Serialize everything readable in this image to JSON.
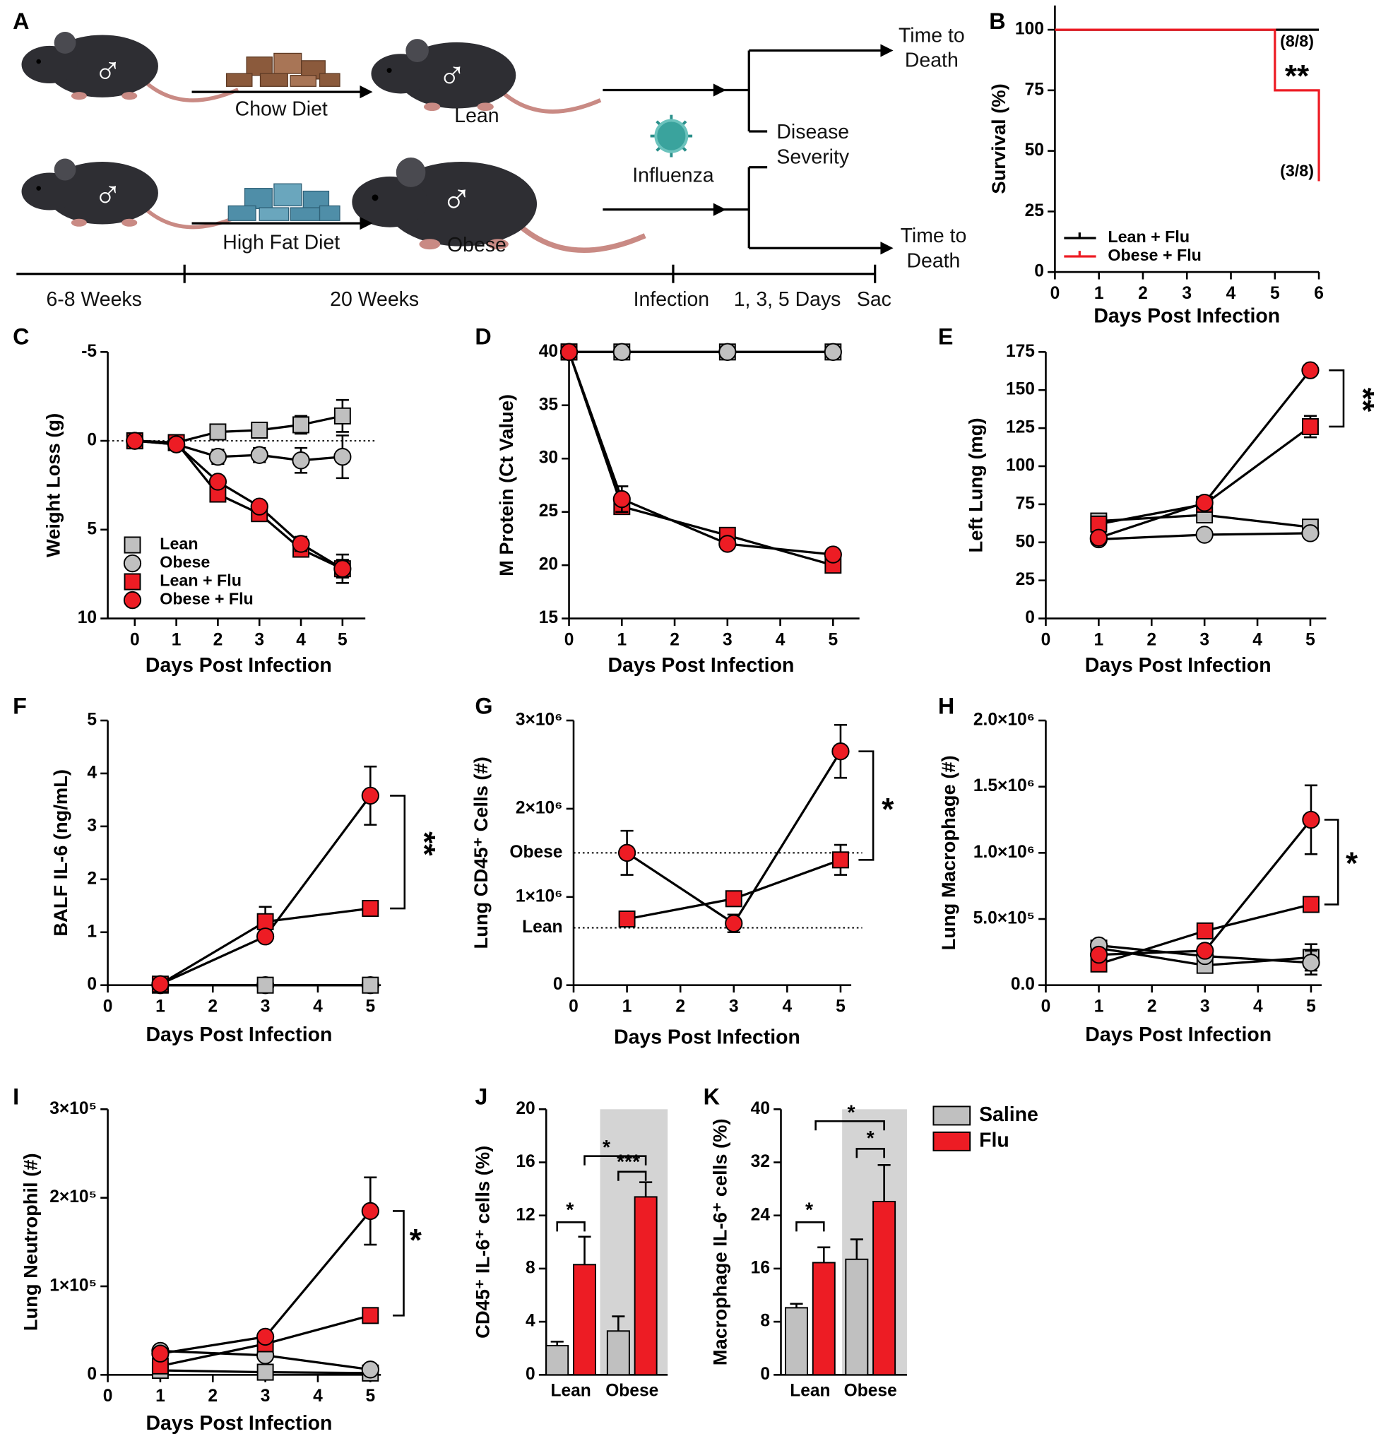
{
  "diagram": {
    "panel": "A",
    "male_symbol": "♂",
    "diets": [
      "Chow Diet",
      "High Fat Diet"
    ],
    "groups": [
      "Lean",
      "Obese"
    ],
    "virus": "Influenza",
    "outcomes": [
      [
        "Time to",
        "Death"
      ],
      [
        "Disease",
        "Severity"
      ],
      [
        "Time to",
        "Death"
      ]
    ],
    "timeline": [
      "6-8 Weeks",
      "20 Weeks",
      "Infection",
      "1, 3, 5 Days",
      "Sac"
    ]
  },
  "chart_data": [
    {
      "panel": "B",
      "type": "line",
      "y_label": "Survival (%)",
      "x_label": "Days Post Infection",
      "xlim": [
        0,
        6
      ],
      "xticks": [
        0,
        1,
        2,
        3,
        4,
        5,
        6
      ],
      "ylim": [
        0,
        110
      ],
      "yticks": [
        0,
        25,
        50,
        75,
        100
      ],
      "legend": "lower left",
      "series": [
        {
          "name": "Lean + Flu",
          "color": "#000000",
          "x": [
            0,
            6
          ],
          "values": [
            100,
            100
          ]
        },
        {
          "name": "Obese + Flu",
          "color": "#ed1c24",
          "x": [
            0,
            5,
            5,
            6,
            6
          ],
          "values": [
            100,
            100,
            75,
            75,
            37.5
          ]
        }
      ],
      "annotations": [
        {
          "text": "(8/8)",
          "color": "#000000"
        },
        {
          "text": "**",
          "color": "#000000"
        },
        {
          "text": "(3/8)",
          "color": "#ed1c24"
        }
      ]
    },
    {
      "panel": "C",
      "type": "line",
      "y_label": "Weight Loss (g)",
      "x_label": "Days Post Infection",
      "xlim": [
        -0.65,
        5.55
      ],
      "xticks": [
        0,
        1,
        2,
        3,
        4,
        5
      ],
      "ylim": [
        10,
        -5
      ],
      "yticks": [
        -5,
        0,
        5,
        10
      ],
      "legend": "lower left",
      "line_color": "#000000",
      "reference_lines": [
        0
      ],
      "x": [
        0,
        1,
        2,
        3,
        4,
        5
      ],
      "series": [
        {
          "name": "Lean",
          "color": "#c0c0c0",
          "marker": "square",
          "values": [
            0,
            0.1,
            -0.5,
            -0.6,
            -0.9,
            -1.4
          ],
          "errors": [
            0,
            0.1,
            0.2,
            0.2,
            0.5,
            0.9
          ]
        },
        {
          "name": "Obese",
          "color": "#c0c0c0",
          "marker": "circle",
          "values": [
            0,
            0.2,
            0.9,
            0.8,
            1.1,
            0.9
          ],
          "errors": [
            0.1,
            0.2,
            0.4,
            0.4,
            0.7,
            1.2
          ]
        },
        {
          "name": "Lean + Flu",
          "color": "#ed1c24",
          "marker": "square",
          "values": [
            0,
            0.1,
            3.0,
            4.1,
            6.1,
            7.2
          ],
          "errors": [
            0.1,
            0.1,
            0.2,
            0.3,
            0.4,
            0.5
          ]
        },
        {
          "name": "Obese + Flu",
          "color": "#ed1c24",
          "marker": "circle",
          "values": [
            0,
            0.2,
            2.3,
            3.7,
            5.8,
            7.2
          ],
          "errors": [
            0.1,
            0.1,
            0.2,
            0.3,
            0.4,
            0.8
          ]
        }
      ]
    },
    {
      "panel": "D",
      "type": "line",
      "y_label": "M Protein (Ct Value)",
      "x_label": "Days Post Infection",
      "xlim": [
        0,
        5.5
      ],
      "xticks": [
        0,
        1,
        2,
        3,
        4,
        5
      ],
      "ylim": [
        15,
        40
      ],
      "yticks": [
        15,
        20,
        25,
        30,
        35,
        40
      ],
      "line_color": "#000000",
      "x": [
        0,
        1,
        3,
        5
      ],
      "series": [
        {
          "color": "#c0c0c0",
          "marker": "square",
          "values": [
            40,
            40,
            40,
            40
          ]
        },
        {
          "color": "#c0c0c0",
          "marker": "circle",
          "values": [
            40,
            40,
            40,
            40
          ]
        },
        {
          "color": "#ed1c24",
          "marker": "square",
          "values": [
            40,
            25.5,
            22.8,
            20.0
          ],
          "errors": [
            0,
            0.6,
            0.5,
            0.4
          ]
        },
        {
          "color": "#ed1c24",
          "marker": "circle",
          "values": [
            40,
            26.2,
            22.0,
            21.0
          ],
          "errors": [
            0,
            1.2,
            0.5,
            0.3
          ]
        }
      ]
    },
    {
      "panel": "E",
      "type": "line",
      "y_label": "Left Lung (mg)",
      "x_label": "Days Post Infection",
      "xlim": [
        0,
        5.3
      ],
      "xticks": [
        0,
        1,
        2,
        3,
        4,
        5
      ],
      "ylim": [
        0,
        175
      ],
      "yticks": [
        0,
        25,
        50,
        75,
        100,
        125,
        150,
        175
      ],
      "line_color": "#000000",
      "x": [
        1,
        3,
        5
      ],
      "series": [
        {
          "color": "#c0c0c0",
          "marker": "square",
          "values": [
            64,
            68,
            60
          ],
          "errors": [
            3,
            3,
            2
          ]
        },
        {
          "color": "#c0c0c0",
          "marker": "circle",
          "values": [
            52,
            55,
            56
          ],
          "errors": [
            1,
            1,
            1
          ]
        },
        {
          "color": "#ed1c24",
          "marker": "square",
          "values": [
            62,
            75,
            126
          ],
          "errors": [
            2,
            2,
            7
          ]
        },
        {
          "color": "#ed1c24",
          "marker": "circle",
          "values": [
            53,
            76,
            163
          ],
          "errors": [
            1,
            2,
            1
          ]
        }
      ],
      "annotations": [
        {
          "text": "**"
        }
      ]
    },
    {
      "panel": "F",
      "type": "line",
      "y_label": "BALF IL-6 (ng/mL)",
      "x_label": "Days Post Infection",
      "xlim": [
        0,
        5.2
      ],
      "xticks": [
        0,
        1,
        2,
        3,
        4,
        5
      ],
      "ylim": [
        0,
        5
      ],
      "yticks": [
        0,
        1,
        2,
        3,
        4,
        5
      ],
      "line_color": "#000000",
      "x": [
        1,
        3,
        5
      ],
      "series": [
        {
          "color": "#c0c0c0",
          "marker": "circle",
          "values": [
            0,
            0,
            0
          ]
        },
        {
          "color": "#c0c0c0",
          "marker": "square",
          "values": [
            0,
            0,
            0
          ]
        },
        {
          "color": "#ed1c24",
          "marker": "square",
          "values": [
            0.02,
            1.2,
            1.45
          ],
          "errors": [
            0,
            0.28,
            0.05
          ]
        },
        {
          "color": "#ed1c24",
          "marker": "circle",
          "values": [
            0.02,
            0.92,
            3.58
          ],
          "errors": [
            0,
            0.1,
            0.55
          ]
        }
      ],
      "annotations": [
        {
          "text": "**"
        }
      ]
    },
    {
      "panel": "G",
      "type": "line",
      "y_label": "Lung CD45⁺ Cells (#)",
      "x_label": "Days Post Infection",
      "xlim": [
        0,
        5.2
      ],
      "xticks": [
        0,
        1,
        2,
        3,
        4,
        5
      ],
      "ylim": [
        0,
        3000000
      ],
      "yticks": [
        0,
        {
          "value": 1000000,
          "label": "1×10⁶"
        },
        {
          "value": 2000000,
          "label": "2×10⁶"
        },
        {
          "value": 3000000,
          "label": "3×10⁶"
        }
      ],
      "line_color": "#000000",
      "reference_lines": [
        {
          "value": 1500000,
          "label": "Obese"
        },
        {
          "value": 650000,
          "label": "Lean"
        }
      ],
      "x": [
        1,
        3,
        5
      ],
      "series": [
        {
          "color": "#ed1c24",
          "marker": "square",
          "values": [
            750000,
            980000,
            1420000
          ],
          "errors": [
            60000,
            80000,
            170000
          ]
        },
        {
          "color": "#ed1c24",
          "marker": "circle",
          "values": [
            1500000,
            700000,
            2650000
          ],
          "errors": [
            250000,
            100000,
            300000
          ]
        }
      ],
      "annotations": [
        {
          "text": "*"
        }
      ]
    },
    {
      "panel": "H",
      "type": "line",
      "y_label": "Lung Macrophage (#)",
      "x_label": "Days Post Infection",
      "xlim": [
        0,
        5.2
      ],
      "xticks": [
        0,
        1,
        2,
        3,
        4,
        5
      ],
      "ylim": [
        0,
        2000000
      ],
      "yticks": [
        {
          "value": 0,
          "label": "0.0"
        },
        {
          "value": 500000,
          "label": "5.0×10⁵"
        },
        {
          "value": 1000000,
          "label": "1.0×10⁶"
        },
        {
          "value": 1500000,
          "label": "1.5×10⁶"
        },
        {
          "value": 2000000,
          "label": "2.0×10⁶"
        }
      ],
      "line_color": "#000000",
      "x": [
        1,
        3,
        5
      ],
      "series": [
        {
          "color": "#c0c0c0",
          "marker": "square",
          "values": [
            280000,
            150000,
            210000
          ],
          "errors": [
            20000,
            20000,
            100000
          ]
        },
        {
          "color": "#c0c0c0",
          "marker": "circle",
          "values": [
            300000,
            220000,
            170000
          ],
          "errors": [
            20000,
            20000,
            90000
          ]
        },
        {
          "color": "#ed1c24",
          "marker": "square",
          "values": [
            160000,
            410000,
            610000
          ],
          "errors": [
            20000,
            40000,
            40000
          ]
        },
        {
          "color": "#ed1c24",
          "marker": "circle",
          "values": [
            230000,
            260000,
            1250000
          ],
          "errors": [
            20000,
            30000,
            260000
          ]
        }
      ],
      "annotations": [
        {
          "text": "*"
        }
      ]
    },
    {
      "panel": "I",
      "type": "line",
      "y_label": "Lung Neutrophil (#)",
      "x_label": "Days Post Infection",
      "xlim": [
        0,
        5.2
      ],
      "xticks": [
        0,
        1,
        2,
        3,
        4,
        5
      ],
      "ylim": [
        0,
        300000
      ],
      "yticks": [
        0,
        {
          "value": 100000,
          "label": "1×10⁵"
        },
        {
          "value": 200000,
          "label": "2×10⁵"
        },
        {
          "value": 300000,
          "label": "3×10⁵"
        }
      ],
      "line_color": "#000000",
      "x": [
        1,
        3,
        5
      ],
      "series": [
        {
          "color": "#c0c0c0",
          "marker": "square",
          "values": [
            5000,
            3000,
            2000
          ],
          "errors": [
            1000,
            1000,
            1000
          ]
        },
        {
          "color": "#c0c0c0",
          "marker": "circle",
          "values": [
            27000,
            22000,
            6000
          ],
          "errors": [
            3000,
            4000,
            2000
          ]
        },
        {
          "color": "#ed1c24",
          "marker": "square",
          "values": [
            10000,
            35000,
            67000
          ],
          "errors": [
            2000,
            5000,
            5000
          ]
        },
        {
          "color": "#ed1c24",
          "marker": "circle",
          "values": [
            24000,
            43000,
            185000
          ],
          "errors": [
            3000,
            5000,
            38000
          ]
        }
      ],
      "annotations": [
        {
          "text": "*"
        }
      ]
    },
    {
      "panel": "J",
      "type": "bar",
      "y_label": "CD45⁺ IL-6⁺ cells (%)",
      "categories": [
        "Lean",
        "Obese"
      ],
      "ylim": [
        0,
        20
      ],
      "yticks": [
        0,
        4,
        8,
        12,
        16,
        20
      ],
      "shaded": [
        false,
        true
      ],
      "shade_color": "#d4d4d4",
      "series": [
        {
          "color": "#c0c0c0",
          "values": [
            2.2,
            3.3
          ],
          "errors": [
            0.3,
            1.1
          ]
        },
        {
          "color": "#ed1c24",
          "values": [
            8.3,
            13.4
          ],
          "errors": [
            2.1,
            1.1
          ]
        }
      ],
      "annotations": [
        {
          "text": "*"
        },
        {
          "text": "***"
        },
        {
          "text": "*"
        }
      ]
    },
    {
      "panel": "K",
      "type": "bar",
      "y_label": "Macrophage IL-6⁺ cells (%)",
      "categories": [
        "Lean",
        "Obese"
      ],
      "ylim": [
        0,
        40
      ],
      "yticks": [
        0,
        8,
        16,
        24,
        32,
        40
      ],
      "shaded": [
        false,
        true
      ],
      "shade_color": "#d4d4d4",
      "legend": "right",
      "series": [
        {
          "name": "Saline",
          "color": "#c0c0c0",
          "values": [
            10.1,
            17.4
          ],
          "errors": [
            0.6,
            3.0
          ]
        },
        {
          "name": "Flu",
          "color": "#ed1c24",
          "values": [
            16.9,
            26.1
          ],
          "errors": [
            2.3,
            5.5
          ]
        }
      ],
      "annotations": [
        {
          "text": "*"
        },
        {
          "text": "*"
        },
        {
          "text": "*"
        }
      ]
    }
  ]
}
